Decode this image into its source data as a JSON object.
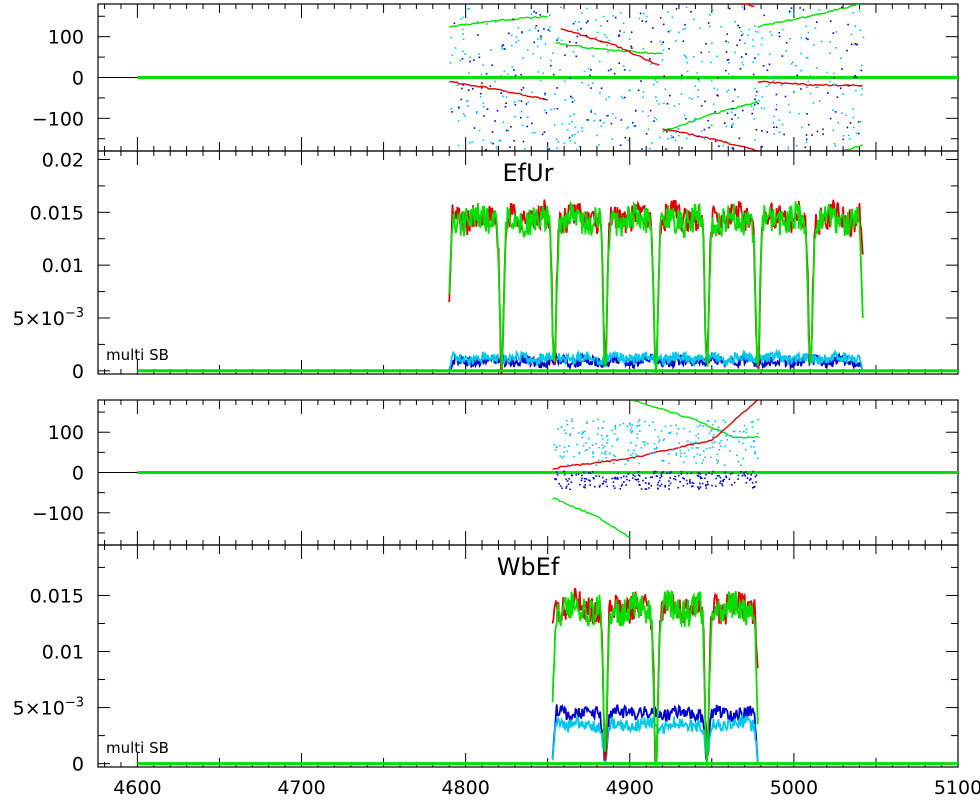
{
  "chart_data": [
    {
      "type": "scatter",
      "panel_id": "top_phase",
      "xlim": [
        4576,
        5100
      ],
      "ylim": [
        -180,
        180
      ],
      "yticks": [
        {
          "value": 100,
          "label": "100"
        },
        {
          "value": 0,
          "label": "0"
        },
        {
          "value": -100,
          "label": "−100"
        }
      ],
      "series": [
        {
          "color": "#00e000",
          "segments": [
            {
              "kind": "line",
              "x": [
                4790,
                4820,
                4850
              ],
              "y": [
                125,
                140,
                150
              ]
            },
            {
              "kind": "line",
              "x": [
                4855,
                4880,
                4920
              ],
              "y": [
                85,
                70,
                58
              ]
            },
            {
              "kind": "line",
              "x": [
                4920,
                4950,
                4978
              ],
              "y": [
                -132,
                -90,
                -60
              ]
            },
            {
              "kind": "line",
              "x": [
                4978,
                5010,
                5040
              ],
              "y": [
                125,
                150,
                180
              ]
            },
            {
              "kind": "line",
              "x": [
                5030,
                5042
              ],
              "y": [
                -180,
                -165
              ]
            },
            {
              "kind": "line",
              "x": [
                4600,
                5100
              ],
              "y": [
                0,
                0
              ]
            }
          ]
        },
        {
          "color": "#e00000",
          "segments": [
            {
              "kind": "line",
              "x": [
                4790,
                4820,
                4850
              ],
              "y": [
                -10,
                -30,
                -55
              ]
            },
            {
              "kind": "line",
              "x": [
                4858,
                4890,
                4918
              ],
              "y": [
                120,
                80,
                30
              ]
            },
            {
              "kind": "line",
              "x": [
                4920,
                4950,
                4978
              ],
              "y": [
                -125,
                -150,
                -180
              ]
            },
            {
              "kind": "line",
              "x": [
                4968,
                4976
              ],
              "y": [
                180,
                175
              ]
            },
            {
              "kind": "line",
              "x": [
                4978,
                5010,
                5042
              ],
              "y": [
                -10,
                -18,
                -20
              ]
            }
          ]
        },
        {
          "color": "#00c8e8",
          "segments": [
            {
              "kind": "dots",
              "xmin": 4790,
              "xmax": 5042,
              "ymin": -175,
              "ymax": 175,
              "n": 420
            }
          ]
        },
        {
          "color": "#0000cc",
          "segments": [
            {
              "kind": "dots",
              "xmin": 4790,
              "xmax": 5042,
              "ymin": -175,
              "ymax": 175,
              "n": 260
            }
          ]
        }
      ]
    },
    {
      "type": "line",
      "panel_id": "top_amp",
      "title": "EfUr",
      "note": "multi SB",
      "xlim": [
        4576,
        5100
      ],
      "ylim": [
        -0.0003,
        0.0208
      ],
      "yticks": [
        {
          "value": 0.02,
          "label": "0.02"
        },
        {
          "value": 0.015,
          "label": "0.015"
        },
        {
          "value": 0.01,
          "label": "0.01"
        },
        {
          "value": 0.005,
          "label": "5×10",
          "exp": "−3"
        },
        {
          "value": 0,
          "label": "0"
        }
      ],
      "series": [
        {
          "color": "#0000cc",
          "segments": [
            {
              "kind": "noise",
              "x0": 4790,
              "x1": 5042,
              "base": 0.0009,
              "amp": 0.0005,
              "dips": [],
              "start": 0,
              "end": 0
            }
          ]
        },
        {
          "color": "#00c8e8",
          "segments": [
            {
              "kind": "noise",
              "x0": 4790,
              "x1": 5042,
              "base": 0.0012,
              "amp": 0.0005,
              "dips": [],
              "start": 0,
              "end": 0
            }
          ]
        },
        {
          "color": "#e00000",
          "segments": [
            {
              "kind": "noise",
              "x0": 4790,
              "x1": 5042,
              "base": 0.0145,
              "amp": 0.0013,
              "dips": [
                4822,
                4854,
                4885,
                4916,
                4947,
                4978,
                5010
              ],
              "start": 0.0065,
              "end": 0.011
            }
          ]
        },
        {
          "color": "#00e000",
          "segments": [
            {
              "kind": "noise",
              "x0": 4790,
              "x1": 5042,
              "base": 0.0143,
              "amp": 0.0013,
              "dips": [
                4822,
                4854,
                4885,
                4916,
                4947,
                4978,
                5010
              ],
              "start": 0.0073,
              "end": 0.005
            }
          ]
        },
        {
          "color": "#00e000",
          "segments": [
            {
              "kind": "line",
              "x": [
                4600,
                5100
              ],
              "y": [
                0,
                0
              ]
            }
          ]
        }
      ]
    },
    {
      "type": "scatter",
      "panel_id": "bottom_phase",
      "xlim": [
        4576,
        5100
      ],
      "ylim": [
        -180,
        180
      ],
      "yticks": [
        {
          "value": 100,
          "label": "100"
        },
        {
          "value": 0,
          "label": "0"
        },
        {
          "value": -100,
          "label": "−100"
        }
      ],
      "series": [
        {
          "color": "#00e000",
          "segments": [
            {
              "kind": "line",
              "x": [
                4853,
                4880,
                4900
              ],
              "y": [
                -62,
                -110,
                -160
              ]
            },
            {
              "kind": "line",
              "x": [
                4902,
                4940,
                4965,
                4978
              ],
              "y": [
                180,
                130,
                85,
                90
              ]
            },
            {
              "kind": "line",
              "x": [
                4600,
                5100
              ],
              "y": [
                0,
                0
              ]
            }
          ]
        },
        {
          "color": "#e00000",
          "segments": [
            {
              "kind": "line",
              "x": [
                4853,
                4900,
                4950,
                4978
              ],
              "y": [
                10,
                35,
                80,
                180
              ]
            }
          ]
        },
        {
          "color": "#00c8e8",
          "segments": [
            {
              "kind": "dots",
              "xmin": 4853,
              "xmax": 4978,
              "ymin": 20,
              "ymax": 135,
              "n": 260
            }
          ]
        },
        {
          "color": "#0000cc",
          "segments": [
            {
              "kind": "dots",
              "xmin": 4853,
              "xmax": 4978,
              "ymin": -40,
              "ymax": 5,
              "n": 220
            }
          ]
        }
      ]
    },
    {
      "type": "line",
      "panel_id": "bottom_amp",
      "title": "WbEf",
      "note": "multi SB",
      "xlim": [
        4576,
        5100
      ],
      "ylim": [
        -0.0003,
        0.0195
      ],
      "xticks": [
        4600,
        4700,
        4800,
        4900,
        5000,
        5100
      ],
      "xlabels": [
        "4600",
        "4700",
        "4800",
        "4900",
        "5000",
        "5100"
      ],
      "yticks": [
        {
          "value": 0.015,
          "label": "0.015"
        },
        {
          "value": 0.01,
          "label": "0.01"
        },
        {
          "value": 0.005,
          "label": "5×10",
          "exp": "−3"
        },
        {
          "value": 0,
          "label": "0"
        }
      ],
      "series": [
        {
          "color": "#0000cc",
          "segments": [
            {
              "kind": "noise",
              "x0": 4853,
              "x1": 4978,
              "base": 0.0045,
              "amp": 0.0006,
              "dips": [
                4885,
                4947
              ],
              "start": 0.0005,
              "end": 0.0001
            }
          ]
        },
        {
          "color": "#00c8e8",
          "segments": [
            {
              "kind": "noise",
              "x0": 4853,
              "x1": 4978,
              "base": 0.0035,
              "amp": 0.0006,
              "dips": [
                4885,
                4947
              ],
              "start": 0.0003,
              "end": 0.0001
            }
          ]
        },
        {
          "color": "#e00000",
          "segments": [
            {
              "kind": "noise",
              "x0": 4853,
              "x1": 4978,
              "base": 0.014,
              "amp": 0.0013,
              "dips": [
                4885,
                4916,
                4947
              ],
              "start": 0.0125,
              "end": 0.0085
            }
          ]
        },
        {
          "color": "#00e000",
          "segments": [
            {
              "kind": "noise",
              "x0": 4853,
              "x1": 4978,
              "base": 0.0138,
              "amp": 0.0013,
              "dips": [
                4885,
                4916,
                4947
              ],
              "start": 0.0055,
              "end": 0.0035
            }
          ]
        },
        {
          "color": "#00e000",
          "segments": [
            {
              "kind": "line",
              "x": [
                4600,
                5100
              ],
              "y": [
                0,
                0
              ]
            }
          ]
        }
      ]
    }
  ]
}
